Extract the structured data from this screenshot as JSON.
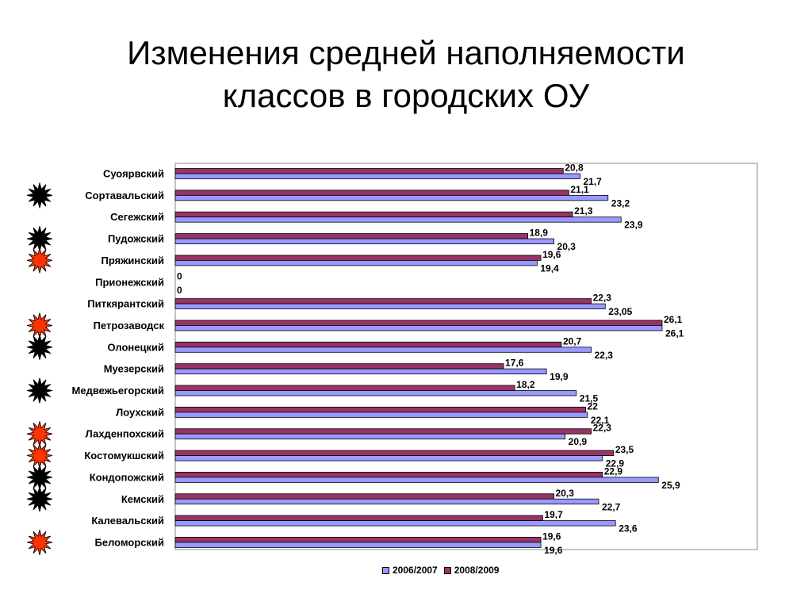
{
  "title_line1": "Изменения средней наполняемости",
  "title_line2": "классов в городских ОУ",
  "colors": {
    "series_2006": "#9999ff",
    "series_2008": "#993366",
    "marker_black": "#000000",
    "marker_red": "#ff3300"
  },
  "chart_data": {
    "type": "bar",
    "orientation": "horizontal",
    "categories": [
      "Суоярвский",
      "Сортавальский",
      "Сегежский",
      "Пудожский",
      "Пряжинский",
      "Прионежский",
      "Питкярантский",
      "Петрозаводск",
      "Олонецкий",
      "Муезерский",
      "Медвежьегорский",
      "Лоухский",
      "Лахденпохский",
      "Костомукшский",
      "Кондопожский",
      "Кемский",
      "Калевальский",
      "Беломорский"
    ],
    "series": [
      {
        "name": "2006/2007",
        "values": [
          21.7,
          23.2,
          23.9,
          20.3,
          19.4,
          0,
          23.05,
          26.1,
          22.3,
          19.9,
          21.5,
          22.1,
          20.9,
          22.9,
          25.9,
          22.7,
          23.6,
          19.6
        ],
        "labels": [
          "21,7",
          "23,2",
          "23,9",
          "20,3",
          "19,4",
          "0",
          "23,05",
          "26,1",
          "22,3",
          "19,9",
          "21,5",
          "22,1",
          "20,9",
          "22,9",
          "25,9",
          "22,7",
          "23,6",
          "19,6"
        ]
      },
      {
        "name": "2008/2009",
        "values": [
          20.8,
          21.1,
          21.3,
          18.9,
          19.6,
          0,
          22.3,
          26.1,
          20.7,
          17.6,
          18.2,
          22,
          22.3,
          23.5,
          22.9,
          20.3,
          19.7,
          19.6
        ],
        "labels": [
          "20,8",
          "21,1",
          "21,3",
          "18,9",
          "19,6",
          "0",
          "22,3",
          "26,1",
          "20,7",
          "17,6",
          "18,2",
          "22",
          "22,3",
          "23,5",
          "22,9",
          "20,3",
          "19,7",
          "19,6"
        ]
      }
    ],
    "xlim": [
      0,
      27.5
    ],
    "grid": false,
    "legend_position": "bottom",
    "markers": [
      "none",
      "black",
      "none",
      "black",
      "red",
      "none",
      "none",
      "red",
      "black",
      "none",
      "black",
      "none",
      "red",
      "red",
      "black",
      "black",
      "none",
      "red"
    ]
  }
}
